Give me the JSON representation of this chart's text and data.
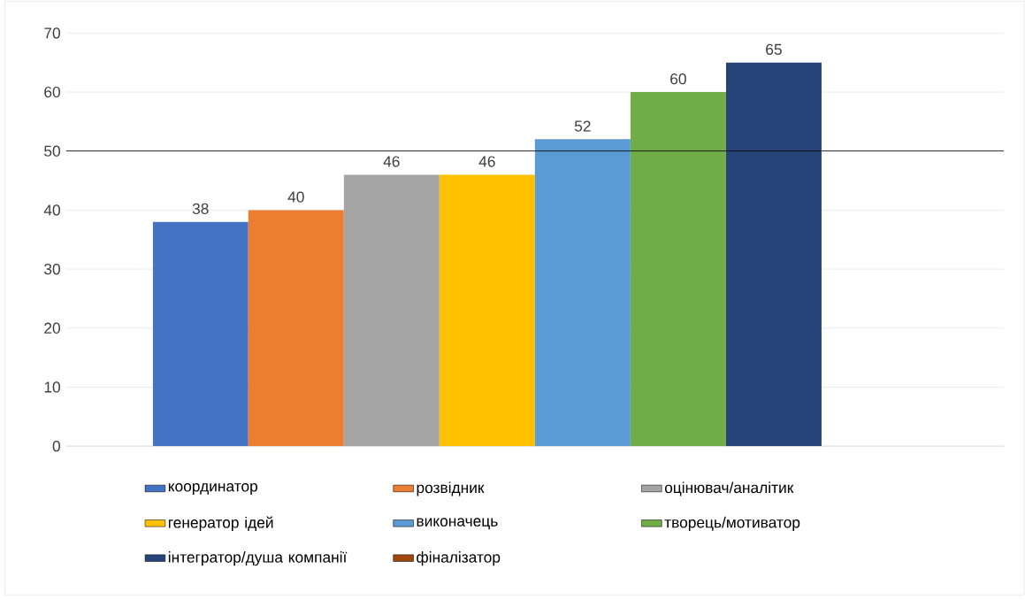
{
  "chart_data": {
    "type": "bar",
    "categories": [
      null
    ],
    "series": [
      {
        "name": "координатор",
        "color": "#4472c4",
        "values": [
          38
        ]
      },
      {
        "name": "розвідник",
        "color": "#ed7d31",
        "values": [
          40
        ]
      },
      {
        "name": "оцінювач/аналітик",
        "color": "#a5a5a5",
        "values": [
          46
        ]
      },
      {
        "name": "генератор ідей",
        "color": "#ffc000",
        "values": [
          46
        ]
      },
      {
        "name": "виконачець",
        "color": "#5b9bd5",
        "values": [
          52
        ]
      },
      {
        "name": "творець/мотиватор",
        "color": "#70ad47",
        "values": [
          60
        ]
      },
      {
        "name": "інтегратор/душа компанії",
        "color": "#264478",
        "values": [
          65
        ]
      },
      {
        "name": "фіналізатор",
        "color": "#9e480e",
        "values": [
          null
        ]
      }
    ],
    "ylim": [
      0,
      70
    ],
    "yticks": [
      0,
      10,
      20,
      30,
      40,
      50,
      60,
      70
    ],
    "grid": "y",
    "legend": "bottom",
    "data_labels": true,
    "ref_lines": [
      {
        "axis": "y",
        "value": 50,
        "color": "#000000"
      }
    ]
  }
}
